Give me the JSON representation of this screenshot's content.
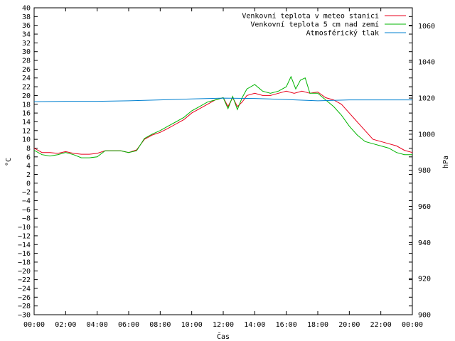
{
  "chart_data": {
    "type": "line",
    "xlabel": "Čas",
    "ylabel": "°C",
    "y2label": "hPa",
    "grid": false,
    "legend_position": "top-right",
    "x_range_hours": [
      0,
      24
    ],
    "xticks": [
      "00:00",
      "02:00",
      "04:00",
      "06:00",
      "08:00",
      "10:00",
      "12:00",
      "14:00",
      "16:00",
      "18:00",
      "20:00",
      "22:00",
      "00:00"
    ],
    "ylim": [
      -30,
      40
    ],
    "yticks": [
      -30,
      -28,
      -26,
      -24,
      -22,
      -20,
      -18,
      -16,
      -14,
      -12,
      -10,
      -8,
      -6,
      -4,
      -2,
      0,
      2,
      4,
      6,
      8,
      10,
      12,
      14,
      16,
      18,
      20,
      22,
      24,
      26,
      28,
      30,
      32,
      34,
      36,
      38,
      40
    ],
    "y2lim": [
      900,
      1070
    ],
    "y2ticks": [
      900,
      920,
      940,
      960,
      980,
      1000,
      1020,
      1040,
      1060
    ],
    "series": [
      {
        "name": "Venkovní teplota v meteo stanici",
        "color": "#e8001c",
        "axis": "left",
        "x": [
          0,
          0.5,
          1,
          1.5,
          2,
          2.5,
          3,
          3.5,
          4,
          4.5,
          5,
          5.5,
          6,
          6.5,
          7,
          7.5,
          8,
          8.5,
          9,
          9.5,
          10,
          10.5,
          11,
          11.5,
          12,
          12.3,
          12.6,
          12.9,
          13.2,
          13.5,
          14,
          14.5,
          15,
          15.5,
          16,
          16.5,
          17,
          17.5,
          18,
          18.5,
          19,
          19.5,
          20,
          20.5,
          21,
          21.5,
          22,
          22.5,
          23,
          23.5,
          24
        ],
        "values": [
          8.0,
          7.0,
          7.0,
          6.8,
          7.2,
          6.8,
          6.6,
          6.6,
          6.8,
          7.4,
          7.4,
          7.4,
          7.0,
          7.6,
          10.0,
          11.0,
          11.6,
          12.5,
          13.5,
          14.5,
          16.0,
          17.0,
          18.0,
          19.0,
          19.5,
          17.5,
          19.5,
          17.5,
          18.5,
          20.0,
          20.5,
          20.0,
          20.0,
          20.5,
          21.0,
          20.5,
          21.0,
          20.5,
          20.8,
          19.5,
          19.0,
          18.0,
          16.0,
          14.0,
          12.0,
          10.0,
          9.5,
          9.0,
          8.5,
          7.5,
          7.0
        ]
      },
      {
        "name": "Venkovní teplota 5 cm nad zemí",
        "color": "#00b400",
        "axis": "left",
        "x": [
          0,
          0.5,
          1,
          1.5,
          2,
          2.5,
          3,
          3.5,
          4,
          4.5,
          5,
          5.5,
          6,
          6.5,
          7,
          7.5,
          8,
          8.5,
          9,
          9.5,
          10,
          10.5,
          11,
          11.5,
          12,
          12.3,
          12.6,
          12.9,
          13.2,
          13.5,
          14,
          14.5,
          15,
          15.5,
          16,
          16.3,
          16.6,
          16.9,
          17.2,
          17.5,
          18,
          18.5,
          19,
          19.5,
          20,
          20.5,
          21,
          21.5,
          22,
          22.5,
          23,
          23.5,
          24
        ],
        "values": [
          7.5,
          6.5,
          6.2,
          6.5,
          7.0,
          6.5,
          5.8,
          5.8,
          6.0,
          7.4,
          7.4,
          7.4,
          7.0,
          7.4,
          10.2,
          11.2,
          12.0,
          13.0,
          14.0,
          15.0,
          16.5,
          17.5,
          18.5,
          19.0,
          19.5,
          17.0,
          19.8,
          16.8,
          19.5,
          21.5,
          22.5,
          21.0,
          20.5,
          21.0,
          22.0,
          24.3,
          21.5,
          23.5,
          24.0,
          20.5,
          20.5,
          19.0,
          17.5,
          15.5,
          13.0,
          11.0,
          9.5,
          9.0,
          8.5,
          8.0,
          7.0,
          6.5,
          6.5
        ]
      },
      {
        "name": "Atmosférický tlak",
        "color": "#0080d0",
        "axis": "right",
        "x": [
          0,
          2,
          4,
          6,
          8,
          10,
          12,
          14,
          16,
          18,
          20,
          22,
          24
        ],
        "values": [
          1018,
          1018.2,
          1018.2,
          1018.5,
          1019,
          1019.5,
          1020,
          1019.8,
          1019.2,
          1018.5,
          1019,
          1019,
          1019
        ]
      }
    ]
  }
}
